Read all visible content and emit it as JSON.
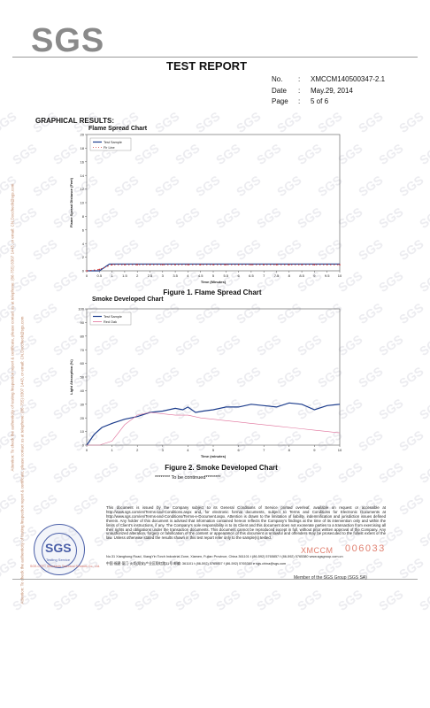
{
  "header": {
    "logo": "SGS",
    "title": "TEST REPORT",
    "fields": [
      {
        "key": "No.",
        "sep": ":",
        "value": "XMCCM140500347-2.1"
      },
      {
        "key": "Date",
        "sep": ":",
        "value": "May.29, 2014"
      },
      {
        "key": "Page",
        "sep": ":",
        "value": "5 of  6"
      }
    ]
  },
  "section_label": "GRAPHICAL RESULTS:",
  "side_note": "Attention: To check the authenticity of testing /inspection report & certificate, please contact us at telephone: (86-755) 8307 1443, or email: CN.Doccheck@sgs.com",
  "chart_data": [
    {
      "type": "line",
      "title": "Flame Spread Chart",
      "caption": "Figure 1.   Flame Spread Chart",
      "xlabel": "Time (Minutes)",
      "ylabel": "Flame Spread Distance (Feet)",
      "xlim": [
        0,
        10
      ],
      "ylim": [
        0,
        20
      ],
      "xticks": [
        "0",
        "0.5",
        "1",
        "1.5",
        "2",
        "2.5",
        "3",
        "3.5",
        "4",
        "4.5",
        "5",
        "5.5",
        "6",
        "6.5",
        "7",
        "7.5",
        "8",
        "8.5",
        "9",
        "9.5",
        "10"
      ],
      "yticks": [
        "0",
        "2",
        "4",
        "6",
        "8",
        "10",
        "12",
        "14",
        "16",
        "18",
        "20"
      ],
      "legend": "top-left",
      "grid": false,
      "series": [
        {
          "name": "Test Sample",
          "color": "#1c3c8c",
          "style": "solid",
          "x": [
            0,
            0.5,
            0.7,
            0.9,
            1,
            1.5,
            2,
            3,
            4,
            5,
            6,
            7,
            8,
            9,
            10
          ],
          "y": [
            0,
            0,
            0.5,
            1.0,
            1.0,
            1.0,
            1.0,
            1.0,
            1.0,
            1.0,
            1.0,
            1.0,
            1.0,
            1.0,
            1.0
          ]
        },
        {
          "name": "Fir Line",
          "color": "#d03a3a",
          "style": "dotted",
          "x": [
            0,
            0.5,
            1,
            1.5,
            2,
            2.5,
            3,
            3.5,
            4,
            4.5,
            5,
            5.5,
            6,
            6.5,
            7,
            7.5,
            8,
            8.5,
            9,
            9.5,
            10
          ],
          "y": [
            0,
            0.2,
            0.9,
            0.9,
            0.9,
            0.9,
            0.9,
            0.9,
            0.9,
            0.9,
            0.9,
            0.9,
            0.9,
            0.9,
            0.9,
            0.9,
            0.9,
            0.9,
            0.9,
            0.9,
            0.9
          ]
        }
      ]
    },
    {
      "type": "line",
      "title": "Smoke Developed Chart",
      "caption": "Figure 2.   Smoke Developed Chart",
      "xlabel": "Time (minutes)",
      "ylabel": "Light Absorption (%)",
      "xlim": [
        0,
        10
      ],
      "ylim": [
        0,
        100
      ],
      "xticks": [
        "0",
        "1",
        "2",
        "3",
        "4",
        "5",
        "6",
        "7",
        "8",
        "9",
        "10"
      ],
      "yticks": [
        "0",
        "10",
        "20",
        "30",
        "40",
        "50",
        "60",
        "70",
        "80",
        "90",
        "100"
      ],
      "legend": "top-left",
      "grid": false,
      "series": [
        {
          "name": "Test Sample",
          "color": "#1c3c8c",
          "style": "solid",
          "x": [
            0,
            0.3,
            0.6,
            1,
            1.5,
            2,
            2.5,
            3,
            3.5,
            3.8,
            4,
            4.3,
            4.6,
            5,
            5.5,
            6,
            6.5,
            7,
            7.5,
            8,
            8.5,
            9,
            9.5,
            10
          ],
          "y": [
            0,
            8,
            13,
            16,
            19,
            21,
            24,
            25,
            27,
            26,
            28,
            24,
            25,
            26,
            28,
            28,
            30,
            29,
            28,
            31,
            30,
            26,
            29,
            30
          ]
        },
        {
          "name": "Red Oak",
          "color": "#e0709a",
          "style": "solid",
          "x": [
            0,
            0.5,
            1,
            1.5,
            2,
            2.5,
            3,
            3.5,
            4,
            4.5,
            5,
            5.5,
            6,
            6.5,
            7,
            7.5,
            8,
            8.5,
            9,
            9.5,
            10
          ],
          "y": [
            0,
            0,
            3,
            15,
            22,
            24,
            23,
            22,
            22,
            20,
            19,
            18,
            17,
            16,
            15,
            14,
            13,
            12,
            11,
            10,
            9
          ]
        }
      ]
    }
  ],
  "continued": "******** To be continued********",
  "disclaimer": "This document is issued by the Company subject to its General Conditions of Service printed overleaf, available on request or accessible at http://www.sgs.com/en/Terms-and-Conditions.aspx and, for electronic format documents, subject to Terms and Conditions for Electronic Documents at http://www.sgs.com/en/Terms-and-Conditions/Terms-e-Document.aspx. Attention is drawn to the limitation of liability, indemnification and jurisdiction issues defined therein. Any holder of this document is advised that information contained hereon reflects the Company's findings at the time of its intervention only and within the limits of Client's instructions, if any. The Company's sole responsibility is to its Client and this document does not exonerate parties to a transaction from exercising all their rights and obligations under the transaction documents. This document cannot be reproduced except in full, without prior written approval of the Company. Any unauthorized alteration, forgery or falsification of the content or appearance of this document is unlawful and offenders may be prosecuted to the fullest extent of the law. Unless otherwise stated the results shown in this test report refer only to the sample(s) tested.",
  "address_en": "No.31 Xianghong Road, XiangYin Torch Industrial Zone, Xiamen, Fujian Province, China  361101   t (86-592) 5765857    f (86-592) 5765380    www.sgsgroup.com.cn",
  "address_cn": "中国·福建·厦门·火炬(翔安)产业区翔虹路31号    邮编: 361101    t (86-592) 5765857    f (86-592) 5765380    e sgs.china@sgs.com",
  "stamp": {
    "main": "SGS",
    "sub": "Testing Service",
    "red": "SGS-CSTC Standards Technical Services Co., Ltd."
  },
  "xm_code": "XMCCM",
  "xm_number": "006033",
  "member": "Member of the SGS Group (SGS SA)"
}
